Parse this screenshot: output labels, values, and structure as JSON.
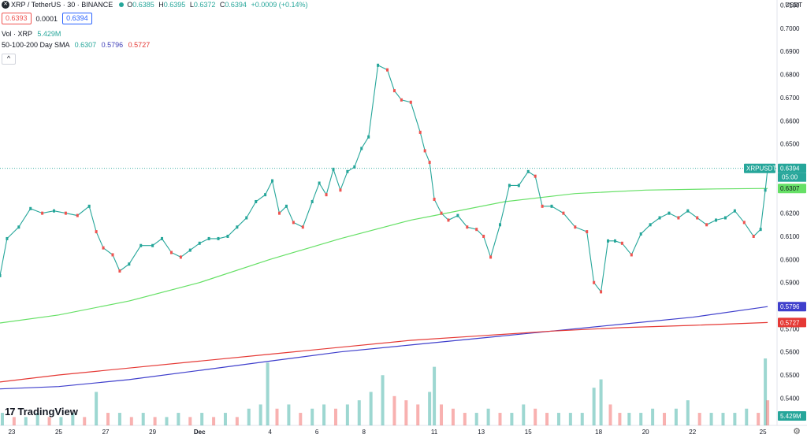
{
  "header": {
    "symbol_title": "XRP / TetherUS · 30 · BINANCE",
    "o_label": "O",
    "o_value": "0.6385",
    "h_label": "H",
    "h_value": "0.6395",
    "l_label": "L",
    "l_value": "0.6372",
    "c_label": "C",
    "c_value": "0.6394",
    "change": "+0.0009 (+0.14%)",
    "bid": "0.6393",
    "spread": "0.0001",
    "ask": "0.6394",
    "vol_label": "Vol · XRP",
    "vol_value": "5.429M",
    "sma_label": "50-100-200 Day SMA",
    "sma50": "0.6307",
    "sma100": "0.5796",
    "sma200": "0.5727",
    "currency": "USDT",
    "collapse_glyph": "^",
    "logo_text": "TradingView",
    "logo_mark": "17",
    "settings_icon": "gear-icon"
  },
  "colors": {
    "up": "#26a69a",
    "down": "#ef5350",
    "sma50": "#66e066",
    "sma100": "#3f3fcc",
    "sma200": "#e53935",
    "last_price": "#26a69a"
  },
  "chart_data": {
    "type": "line",
    "title": "XRP / TetherUS · 30 · BINANCE",
    "ylim": [
      0.534,
      0.7095
    ],
    "y_ticks": [
      0.54,
      0.55,
      0.56,
      0.57,
      0.58,
      0.59,
      0.6,
      0.61,
      0.62,
      0.63,
      0.64,
      0.65,
      0.66,
      0.67,
      0.68,
      0.69,
      0.7,
      0.71
    ],
    "x_tick_labels": [
      "23",
      "25",
      "27",
      "29",
      "Dec",
      "4",
      "6",
      "8",
      "11",
      "13",
      "15",
      "18",
      "20",
      "22",
      "25"
    ],
    "x_tick_positions": [
      1,
      3,
      5,
      7,
      9,
      12,
      14,
      16,
      19,
      21,
      23,
      26,
      28,
      30,
      33
    ],
    "x_range": [
      0.5,
      33.6
    ],
    "price_series": {
      "name": "XRPUSDT",
      "x": [
        0.5,
        0.8,
        1.3,
        1.8,
        2.3,
        2.8,
        3.3,
        3.8,
        4.3,
        4.6,
        4.9,
        5.3,
        5.6,
        6.0,
        6.5,
        7.0,
        7.4,
        7.8,
        8.2,
        8.6,
        9.0,
        9.4,
        9.8,
        10.2,
        10.6,
        11.0,
        11.4,
        11.8,
        12.1,
        12.4,
        12.7,
        13.0,
        13.4,
        13.8,
        14.1,
        14.4,
        14.7,
        15.0,
        15.3,
        15.6,
        15.9,
        16.2,
        16.6,
        17.0,
        17.3,
        17.6,
        18.0,
        18.4,
        18.6,
        18.8,
        19.0,
        19.3,
        19.6,
        20.0,
        20.4,
        20.8,
        21.1,
        21.4,
        21.8,
        22.2,
        22.6,
        23.0,
        23.3,
        23.6,
        24.0,
        24.5,
        25.0,
        25.5,
        25.8,
        26.1,
        26.4,
        26.7,
        27.0,
        27.4,
        27.8,
        28.2,
        28.6,
        29.0,
        29.4,
        29.8,
        30.2,
        30.6,
        31.0,
        31.4,
        31.8,
        32.2,
        32.6,
        32.9,
        33.1,
        33.2
      ],
      "y": [
        0.593,
        0.609,
        0.614,
        0.622,
        0.62,
        0.621,
        0.62,
        0.619,
        0.623,
        0.612,
        0.605,
        0.602,
        0.595,
        0.598,
        0.606,
        0.606,
        0.609,
        0.603,
        0.601,
        0.604,
        0.607,
        0.609,
        0.609,
        0.61,
        0.614,
        0.618,
        0.625,
        0.628,
        0.634,
        0.62,
        0.623,
        0.616,
        0.614,
        0.625,
        0.633,
        0.628,
        0.639,
        0.63,
        0.638,
        0.64,
        0.648,
        0.653,
        0.684,
        0.682,
        0.673,
        0.669,
        0.668,
        0.655,
        0.647,
        0.642,
        0.626,
        0.62,
        0.617,
        0.619,
        0.614,
        0.613,
        0.61,
        0.601,
        0.615,
        0.632,
        0.632,
        0.638,
        0.636,
        0.623,
        0.623,
        0.62,
        0.614,
        0.612,
        0.59,
        0.586,
        0.608,
        0.608,
        0.607,
        0.602,
        0.611,
        0.615,
        0.618,
        0.62,
        0.618,
        0.621,
        0.618,
        0.615,
        0.617,
        0.618,
        0.621,
        0.616,
        0.61,
        0.613,
        0.63,
        0.6394
      ]
    },
    "sma_series": [
      {
        "name": "50",
        "x": [
          0.5,
          3.0,
          6.0,
          9.0,
          12.0,
          15.0,
          18.0,
          19.0,
          22.0,
          25.0,
          28.0,
          31.0,
          33.2
        ],
        "y": [
          0.5725,
          0.576,
          0.582,
          0.59,
          0.6,
          0.609,
          0.617,
          0.619,
          0.625,
          0.6285,
          0.63,
          0.6305,
          0.6307
        ]
      },
      {
        "name": "100",
        "x": [
          0.5,
          3.0,
          6.0,
          9.0,
          12.0,
          15.0,
          18.0,
          21.0,
          24.0,
          27.0,
          30.0,
          33.2
        ],
        "y": [
          0.544,
          0.545,
          0.548,
          0.552,
          0.556,
          0.56,
          0.563,
          0.566,
          0.569,
          0.572,
          0.575,
          0.5796
        ]
      },
      {
        "name": "200",
        "x": [
          0.5,
          3.0,
          6.0,
          9.0,
          12.0,
          15.0,
          18.0,
          21.0,
          24.0,
          27.0,
          30.0,
          33.2
        ],
        "y": [
          0.547,
          0.55,
          0.553,
          0.556,
          0.559,
          0.562,
          0.565,
          0.567,
          0.569,
          0.5705,
          0.5715,
          0.5727
        ]
      }
    ],
    "last_price": 0.6394,
    "price_label": "XRPUSDT",
    "countdown": "05:00",
    "axis_labels": [
      "0.6394",
      "0.6307",
      "0.5796",
      "0.5727",
      "5.429M"
    ],
    "volume": {
      "x": [
        0.6,
        1.1,
        1.6,
        2.1,
        2.6,
        3.1,
        3.6,
        4.1,
        4.6,
        5.1,
        5.6,
        6.1,
        6.6,
        7.1,
        7.6,
        8.1,
        8.6,
        9.1,
        9.6,
        10.1,
        10.6,
        11.1,
        11.6,
        11.9,
        12.3,
        12.8,
        13.3,
        13.8,
        14.3,
        14.8,
        15.3,
        15.8,
        16.3,
        16.8,
        17.3,
        17.8,
        18.3,
        18.8,
        19.0,
        19.3,
        19.8,
        20.3,
        20.8,
        21.3,
        21.8,
        22.3,
        22.8,
        23.3,
        23.8,
        24.3,
        24.8,
        25.3,
        25.8,
        26.1,
        26.5,
        26.9,
        27.3,
        27.8,
        28.3,
        28.8,
        29.3,
        29.8,
        30.3,
        30.8,
        31.3,
        31.8,
        32.3,
        32.8,
        33.1,
        33.2
      ],
      "v": [
        0.3,
        0.2,
        0.2,
        0.3,
        0.2,
        0.2,
        0.3,
        0.2,
        0.8,
        0.3,
        0.3,
        0.2,
        0.3,
        0.2,
        0.2,
        0.3,
        0.2,
        0.3,
        0.2,
        0.3,
        0.2,
        0.4,
        0.5,
        1.5,
        0.4,
        0.5,
        0.3,
        0.4,
        0.5,
        0.4,
        0.5,
        0.6,
        0.8,
        1.2,
        0.7,
        0.6,
        0.5,
        0.8,
        1.4,
        0.5,
        0.4,
        0.3,
        0.3,
        0.4,
        0.3,
        0.3,
        0.5,
        0.4,
        0.3,
        0.3,
        0.3,
        0.3,
        0.9,
        1.1,
        0.5,
        0.3,
        0.3,
        0.3,
        0.4,
        0.3,
        0.4,
        0.6,
        0.3,
        0.3,
        0.3,
        0.3,
        0.4,
        0.3,
        1.6,
        0.6
      ],
      "unit": "M"
    }
  }
}
